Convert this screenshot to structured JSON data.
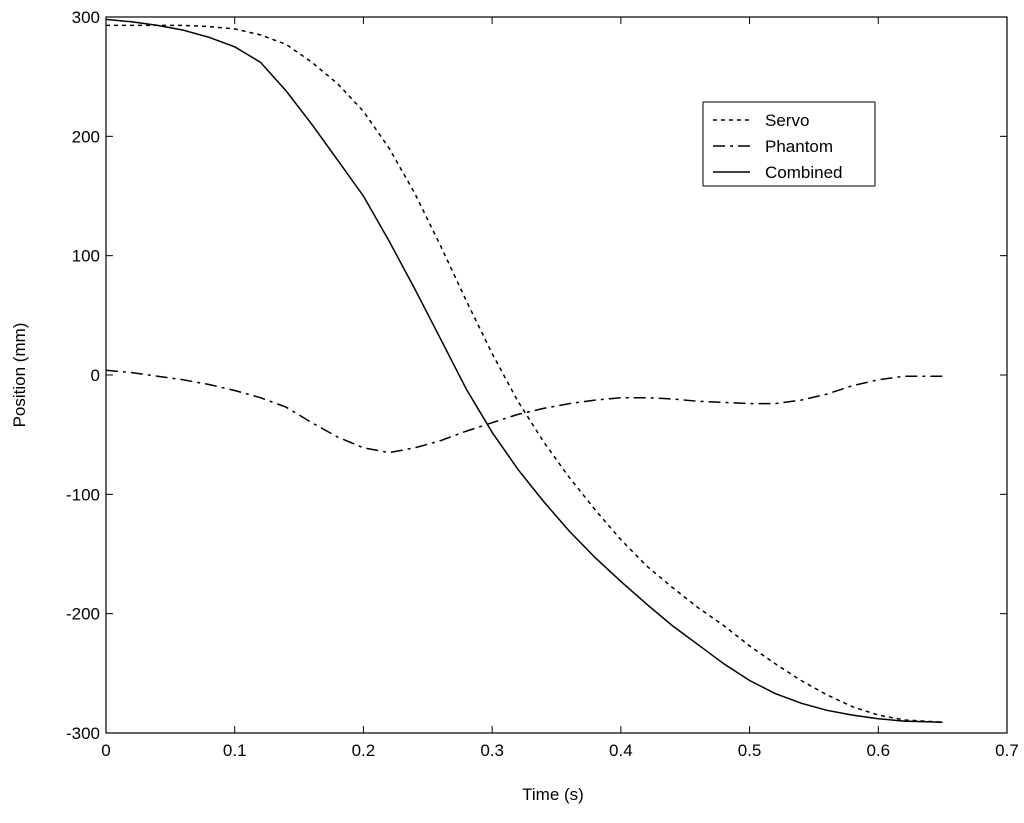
{
  "chart_data": {
    "type": "line",
    "title": "",
    "xlabel": "Time (s)",
    "ylabel": "Position (mm)",
    "xlim": [
      0,
      0.7
    ],
    "ylim": [
      -300,
      300
    ],
    "xticks": [
      0,
      0.1,
      0.2,
      0.3,
      0.4,
      0.5,
      0.6,
      0.7
    ],
    "xtick_labels": [
      "0",
      "0.1",
      "0.2",
      "0.3",
      "0.4",
      "0.5",
      "0.6",
      "0.7"
    ],
    "yticks": [
      -300,
      -200,
      -100,
      0,
      100,
      200,
      300
    ],
    "ytick_labels": [
      "-300",
      "-200",
      "-100",
      "0",
      "100",
      "200",
      "300"
    ],
    "grid": false,
    "legend_position": "top-right",
    "series": [
      {
        "name": "Servo",
        "line_style": "dotted",
        "color": "#000000",
        "x": [
          0,
          0.02,
          0.04,
          0.06,
          0.08,
          0.1,
          0.12,
          0.14,
          0.16,
          0.18,
          0.2,
          0.22,
          0.24,
          0.26,
          0.28,
          0.3,
          0.32,
          0.34,
          0.36,
          0.38,
          0.4,
          0.42,
          0.44,
          0.46,
          0.48,
          0.5,
          0.52,
          0.54,
          0.56,
          0.58,
          0.6,
          0.62,
          0.65
        ],
        "y": [
          293,
          293,
          293,
          293,
          292,
          290,
          285,
          277,
          262,
          244,
          221,
          190,
          152,
          108,
          62,
          18,
          -22,
          -56,
          -86,
          -113,
          -138,
          -160,
          -178,
          -195,
          -210,
          -227,
          -242,
          -256,
          -268,
          -278,
          -285,
          -289,
          -291
        ]
      },
      {
        "name": "Phantom",
        "line_style": "dashdot",
        "color": "#000000",
        "x": [
          0,
          0.02,
          0.04,
          0.06,
          0.08,
          0.1,
          0.12,
          0.14,
          0.16,
          0.18,
          0.2,
          0.22,
          0.24,
          0.26,
          0.28,
          0.3,
          0.32,
          0.34,
          0.36,
          0.38,
          0.4,
          0.42,
          0.44,
          0.46,
          0.48,
          0.5,
          0.52,
          0.54,
          0.56,
          0.58,
          0.6,
          0.62,
          0.65
        ],
        "y": [
          4,
          2,
          -1,
          -4,
          -8,
          -13,
          -19,
          -27,
          -40,
          -52,
          -61,
          -65,
          -61,
          -55,
          -47,
          -40,
          -33,
          -28,
          -24,
          -21,
          -19,
          -19,
          -20,
          -22,
          -23,
          -24,
          -24,
          -21,
          -16,
          -9,
          -4,
          -1,
          -1
        ]
      },
      {
        "name": "Combined",
        "line_style": "solid",
        "color": "#000000",
        "x": [
          0,
          0.02,
          0.04,
          0.06,
          0.08,
          0.1,
          0.12,
          0.14,
          0.16,
          0.18,
          0.2,
          0.22,
          0.24,
          0.26,
          0.28,
          0.3,
          0.32,
          0.34,
          0.36,
          0.38,
          0.4,
          0.42,
          0.44,
          0.46,
          0.48,
          0.5,
          0.52,
          0.54,
          0.56,
          0.58,
          0.6,
          0.62,
          0.65
        ],
        "y": [
          298,
          296,
          293,
          289,
          283,
          275,
          262,
          238,
          210,
          180,
          150,
          112,
          72,
          30,
          -12,
          -48,
          -79,
          -106,
          -131,
          -153,
          -173,
          -192,
          -210,
          -226,
          -242,
          -256,
          -267,
          -275,
          -281,
          -285,
          -288,
          -290,
          -291
        ]
      }
    ]
  }
}
